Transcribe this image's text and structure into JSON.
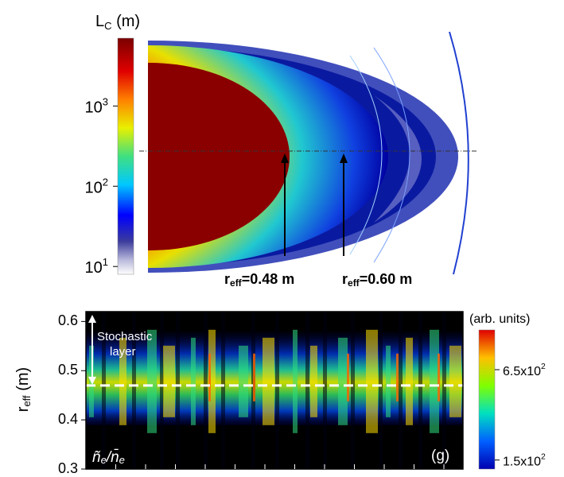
{
  "top_panel": {
    "colorbar": {
      "title": {
        "base": "L",
        "sub": "C",
        "rest": " (m)"
      },
      "scale": "log",
      "lim": [
        8,
        7000
      ],
      "ticks": [
        {
          "value": 10,
          "label": "10",
          "exponent": "1"
        },
        {
          "value": 100,
          "label": "10",
          "exponent": "2"
        },
        {
          "value": 1000,
          "label": "10",
          "exponent": "3"
        }
      ]
    },
    "annotations": [
      {
        "base": "r",
        "sub": "eff",
        "rest": "=0.48 m"
      },
      {
        "base": "r",
        "sub": "eff",
        "rest": "=0.60 m"
      }
    ]
  },
  "bottom_panel": {
    "y_axis": {
      "base": "r",
      "sub": "eff",
      "rest": " (m)"
    },
    "ylim": [
      0.3,
      0.62
    ],
    "yticks": [
      0.3,
      0.4,
      0.5,
      0.6
    ],
    "dashed_line": 0.47,
    "stochastic_label": [
      "Stochastic",
      "layer"
    ],
    "quantity": {
      "num": "ñ",
      "num_sub": "e",
      "sep": "/",
      "den": "n̄",
      "den_sub": "e"
    },
    "panel_label": "(g)",
    "colorbar": {
      "title": "(arb. units)",
      "lim": [
        100,
        870
      ],
      "ticks": [
        {
          "value": 150,
          "label": "1.5x10",
          "exponent": "2"
        },
        {
          "value": 650,
          "label": "6.5x10",
          "exponent": "2"
        }
      ]
    }
  }
}
